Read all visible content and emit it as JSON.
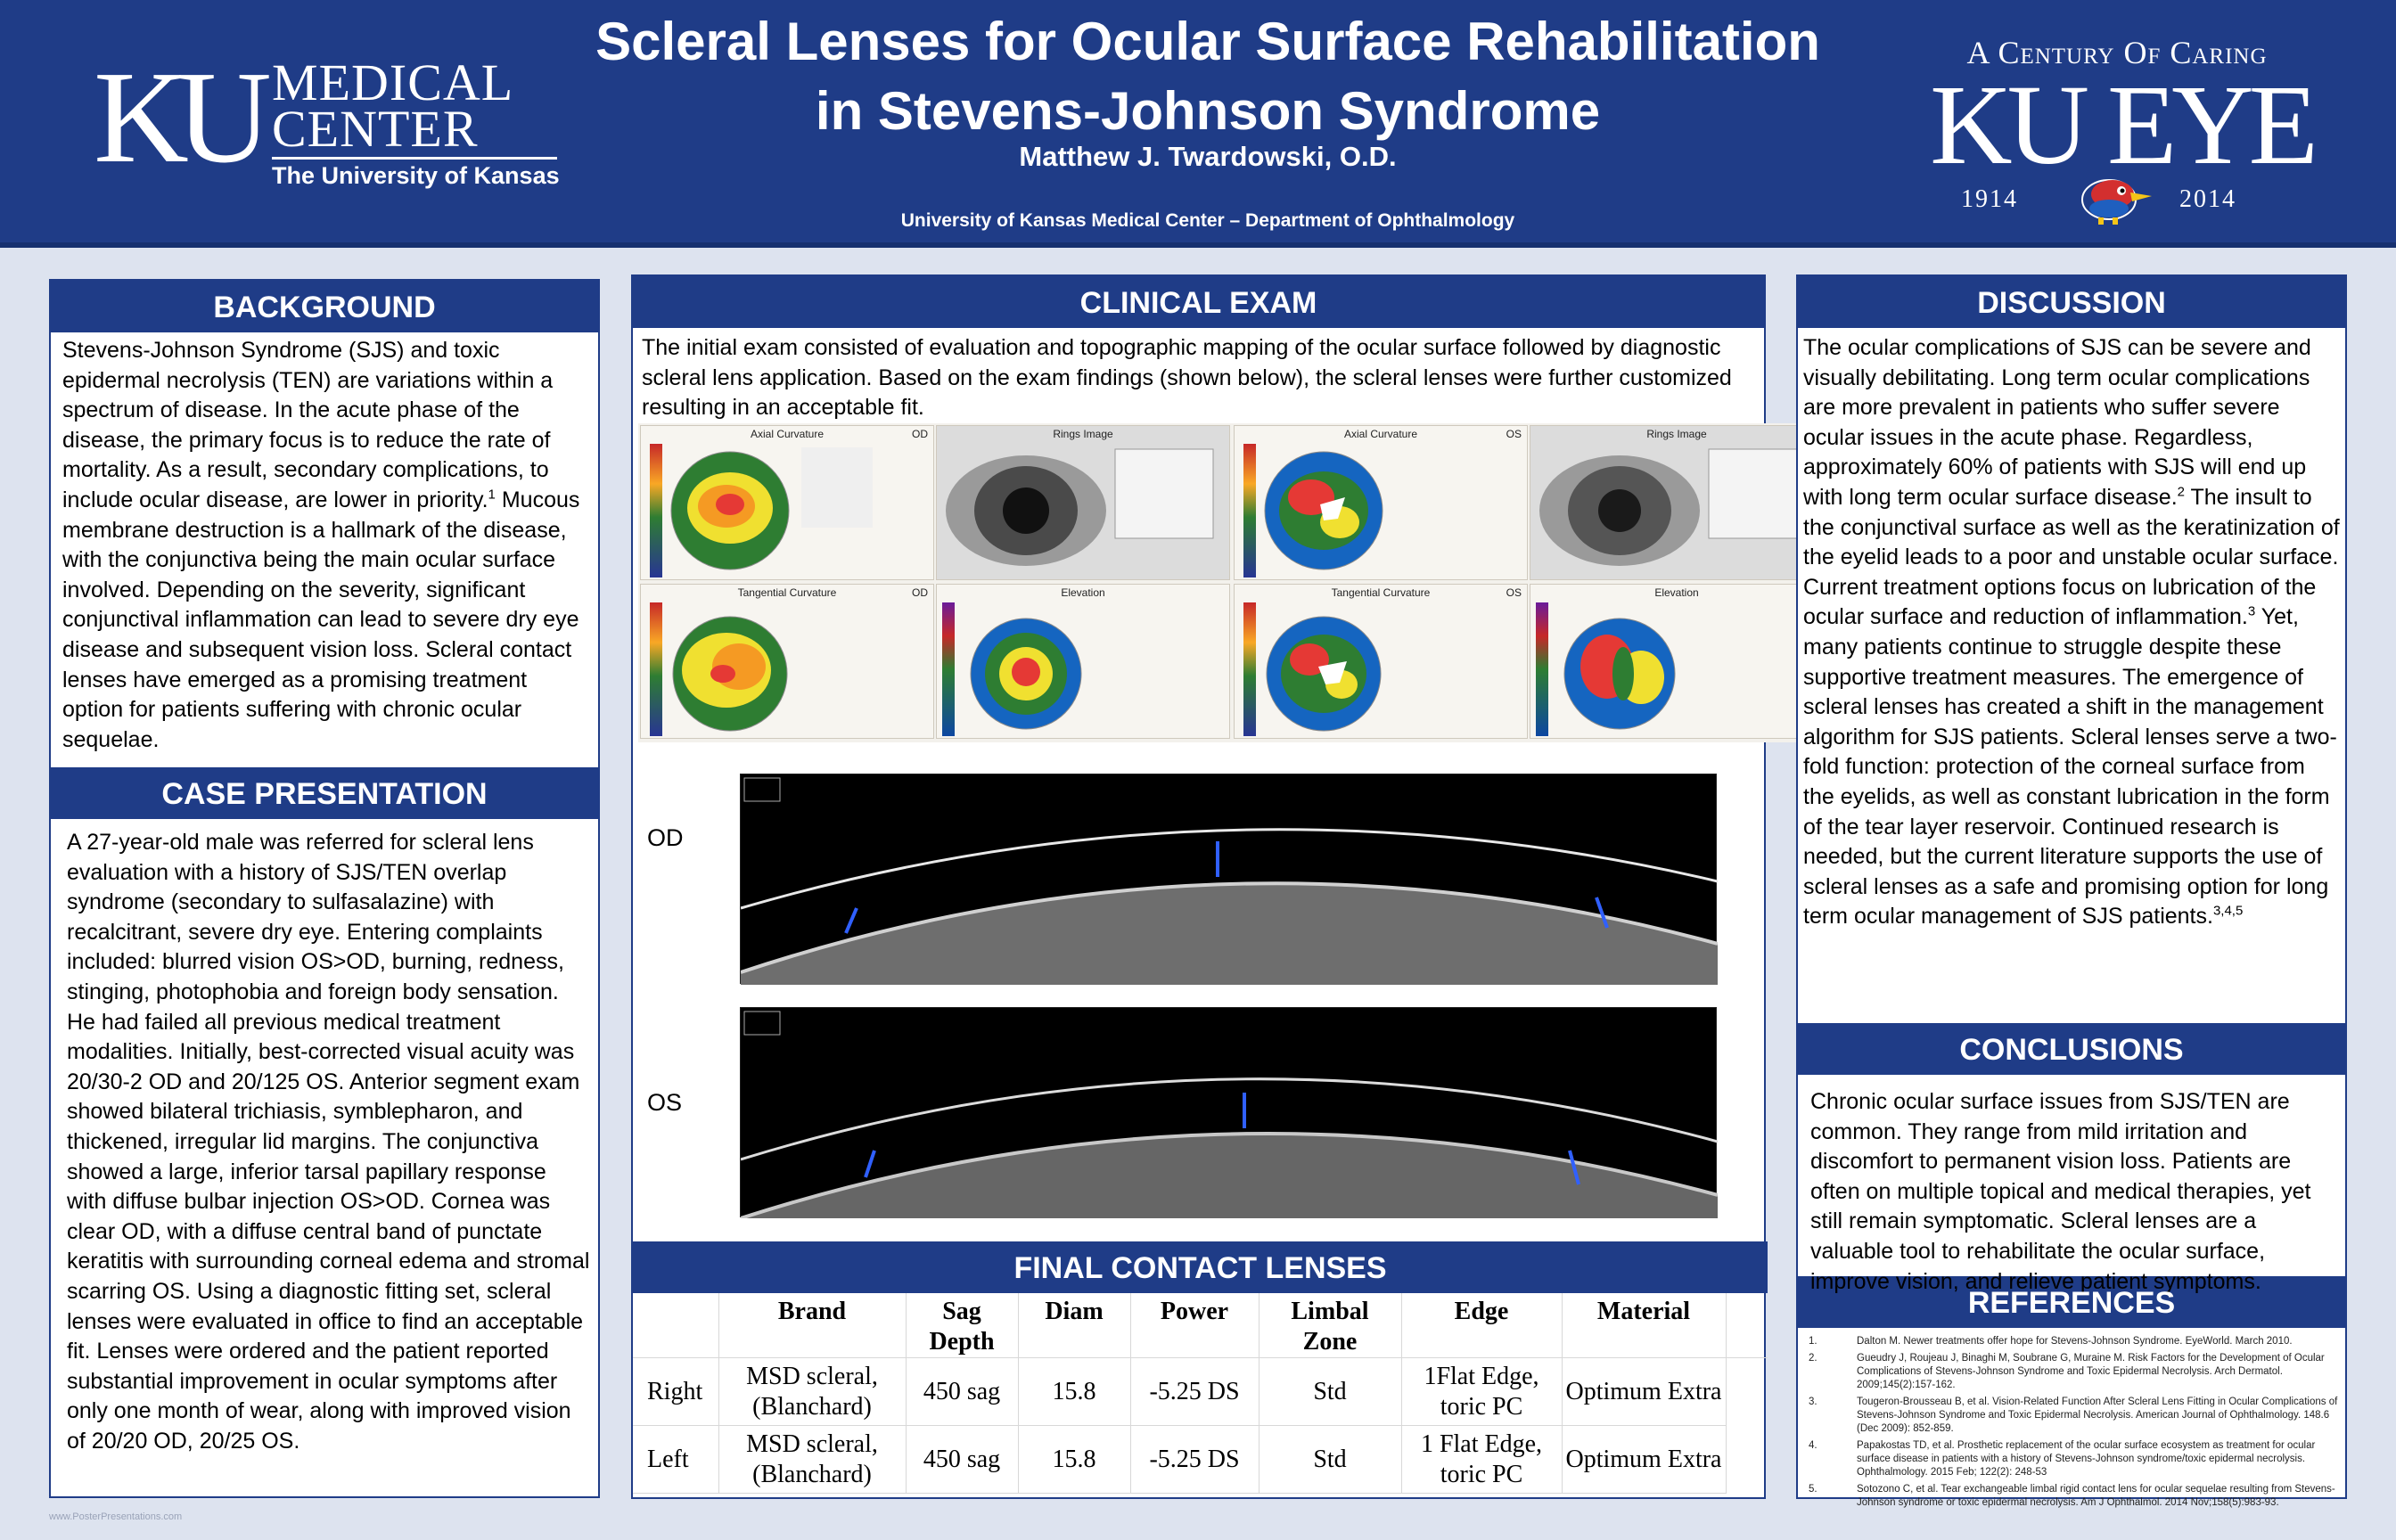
{
  "header": {
    "title_line1": "Scleral Lenses for Ocular Surface Rehabilitation",
    "title_line2": "in Stevens-Johnson Syndrome",
    "author": "Matthew J. Twardowski, O.D.",
    "affiliation": "University of Kansas Medical Center – Department of Ophthalmology",
    "logo_left": {
      "ku": "KU",
      "line1": "MEDICAL",
      "line2": "CENTER",
      "line3": "The University of Kansas"
    },
    "logo_right": {
      "tagline": "A Century Of Caring",
      "mark": "KU EYE",
      "year_start": "1914",
      "year_end": "2014"
    }
  },
  "background": {
    "heading": "BACKGROUND",
    "p1": "Stevens-Johnson Syndrome (SJS) and toxic epidermal necrolysis (TEN) are variations within a spectrum of disease.  In the acute phase of the disease, the primary focus is to reduce the rate of mortality.  As a result, secondary complications, to include ocular disease, are lower in priority.",
    "p1_sup": "1",
    "p2": " Mucous membrane destruction is a hallmark of the disease, with the conjunctiva being the main ocular surface involved.  Depending on the severity, significant conjunctival inflammation can lead to severe dry eye disease and subsequent vision loss.  Scleral contact lenses have emerged as a promising treatment option for patients suffering with chronic ocular sequelae."
  },
  "case": {
    "heading": "CASE PRESENTATION",
    "text": "A 27-year-old male was referred for scleral lens evaluation with a history of SJS/TEN overlap syndrome (secondary to sulfasalazine) with recalcitrant, severe dry eye.  Entering complaints included:  blurred vision OS>OD, burning, redness, stinging, photophobia and foreign body sensation.  He had failed all previous medical treatment modalities.  Initially, best-corrected visual acuity was 20/30-2 OD and 20/125 OS.  Anterior segment exam showed bilateral trichiasis, symblepharon, and thickened, irregular lid margins.  The conjunctiva showed a large, inferior tarsal papillary response with diffuse bulbar injection OS>OD.  Cornea was clear OD, with a diffuse central band of punctate keratitis with surrounding corneal edema and stromal scarring OS.  Using a diagnostic fitting set, scleral lenses were evaluated in office to find an acceptable fit.  Lenses were ordered and the patient reported substantial improvement in ocular symptoms after only one month of wear, along with improved vision of 20/20 OD, 20/25 OS."
  },
  "exam": {
    "heading": "CLINICAL EXAM",
    "text": "The initial exam consisted of evaluation and topographic mapping of the ocular surface followed by diagnostic scleral lens application.  Based on the exam findings (shown below), the scleral lenses were further customized resulting in an acceptable fit.",
    "topo_od": {
      "q1": "Axial Curvature",
      "q2": "Rings Image",
      "q3": "Tangential Curvature",
      "q4": "Elevation",
      "eye": "OD"
    },
    "topo_os": {
      "q1": "Axial Curvature",
      "q2": "Rings Image",
      "q3": "Tangential Curvature",
      "q4": "Elevation",
      "eye": "OS"
    },
    "oct_od_label": "OD",
    "oct_os_label": "OS"
  },
  "lenses": {
    "heading": "FINAL CONTACT LENSES",
    "columns": [
      "",
      "Brand",
      "Sag Depth",
      "Diam",
      "Power",
      "Limbal Zone",
      "Edge",
      "Material"
    ],
    "rows": [
      [
        "Right",
        "MSD scleral, (Blanchard)",
        "450 sag",
        "15.8",
        "-5.25 DS",
        "Std",
        "1Flat Edge, toric PC",
        "Optimum Extra"
      ],
      [
        "Left",
        "MSD scleral, (Blanchard)",
        "450 sag",
        "15.8",
        "-5.25 DS",
        "Std",
        "1 Flat Edge, toric PC",
        "Optimum Extra"
      ]
    ]
  },
  "discussion": {
    "heading": "DISCUSSION",
    "t1": "The ocular complications of SJS can be severe and visually debilitating.  Long term ocular complications are more prevalent in patients who suffer severe ocular issues in the acute phase.  Regardless, approximately 60% of patients with SJS will end up with long term ocular surface disease.",
    "s1": "2",
    "t2": "  The insult to the conjunctival surface as well as the keratinization of the eyelid leads to a poor and unstable ocular surface.  Current treatment options focus on lubrication of the ocular surface and reduction of inflammation.",
    "s2": "3",
    "t3": "  Yet, many patients continue to struggle despite these supportive treatment measures.  The emergence of scleral lenses has created a shift in the management algorithm for SJS patients.  Scleral lenses serve a two-fold function: protection of the corneal surface from the eyelids, as well as constant lubrication in the form of the tear layer reservoir.  Continued research is needed, but the current literature supports the use of scleral lenses as a safe and promising option for long term ocular management of SJS patients.",
    "s3": "3,4,5"
  },
  "conclusions": {
    "heading": "CONCLUSIONS",
    "text": "Chronic ocular surface issues from SJS/TEN are common.  They range from mild irritation and discomfort to permanent vision loss.  Patients are often on multiple topical and medical therapies, yet still remain symptomatic.  Scleral lenses are a valuable tool to rehabilitate the ocular surface, improve vision, and relieve patient symptoms."
  },
  "references": {
    "heading": "REFERENCES",
    "items": [
      {
        "n": "1.",
        "text": "Dalton M. Newer treatments offer hope for Stevens-Johnson Syndrome. EyeWorld. March 2010."
      },
      {
        "n": "2.",
        "text": "Gueudry J, Roujeau J, Binaghi M, Soubrane G, Muraine M. Risk Factors for the Development of Ocular Complications of Stevens-Johnson Syndrome and Toxic Epidermal Necrolysis. Arch Dermatol. 2009;145(2):157-162."
      },
      {
        "n": "3.",
        "text": "Tougeron-Brousseau B, et al. Vision-Related Function After Scleral Lens Fitting in Ocular Complications of Stevens-Johnson Syndrome and Toxic Epidermal Necrolysis. American Journal of Ophthalmology. 148.6 (Dec 2009): 852-859."
      },
      {
        "n": "4.",
        "text": "Papakostas TD, et al. Prosthetic replacement of the ocular surface ecosystem as treatment for ocular surface disease in patients with a history of Stevens-Johnson syndrome/toxic epidermal necrolysis. Ophthalmology. 2015 Feb; 122(2): 248-53"
      },
      {
        "n": "5.",
        "text": "Sotozono C, et al. Tear exchangeable limbal rigid contact lens for ocular sequelae resulting from Stevens-Johnson syndrome or toxic epidermal necrolysis. Am J Ophthalmol. 2014 Nov;158(5):983-93."
      }
    ]
  },
  "footer": {
    "mark": "www.PosterPresentations.com"
  }
}
